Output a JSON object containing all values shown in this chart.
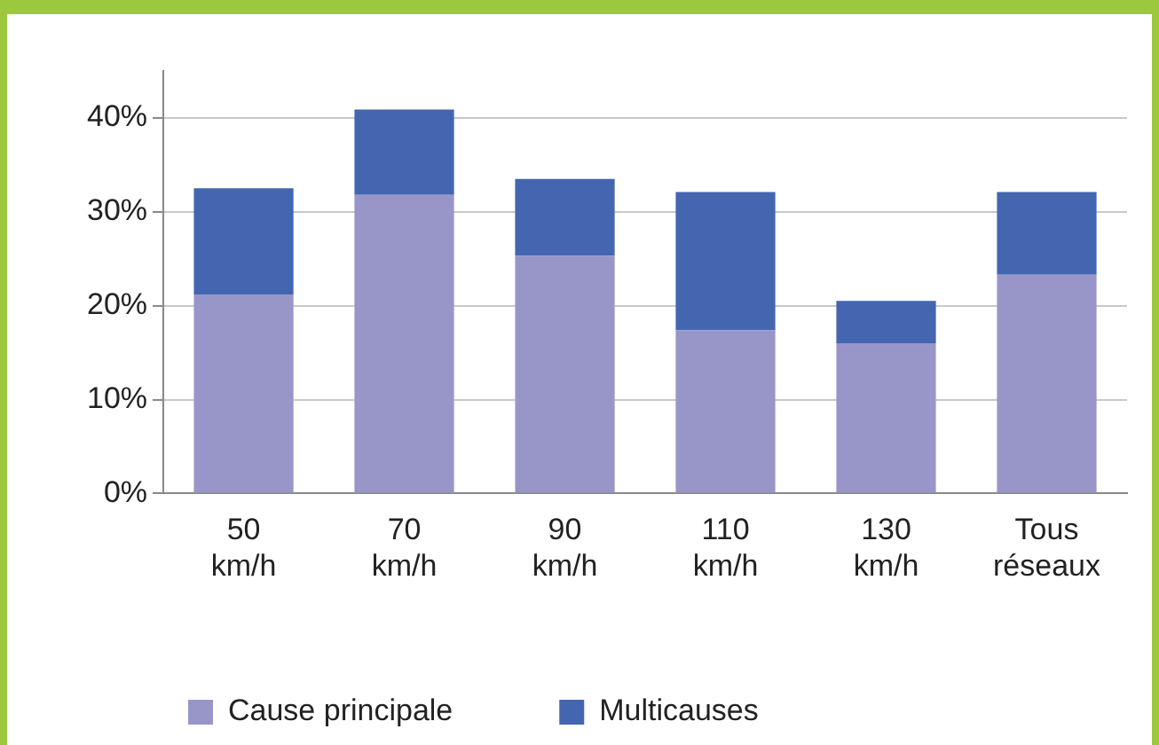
{
  "chart_data": {
    "type": "bar",
    "stacked": true,
    "categories": [
      "50 km/h",
      "70 km/h",
      "90 km/h",
      "110 km/h",
      "130 km/h",
      "Tous réseaux"
    ],
    "series": [
      {
        "name": "Cause principale",
        "color": "#9896c9",
        "values": [
          21.2,
          31.8,
          25.3,
          17.4,
          16.0,
          23.3
        ]
      },
      {
        "name": "Multicauses",
        "color": "#4466b0",
        "values": [
          11.3,
          9.1,
          8.2,
          14.7,
          4.5,
          8.8
        ]
      }
    ],
    "ylim": [
      0,
      45
    ],
    "yticks": [
      {
        "value": 0,
        "label": "0%"
      },
      {
        "value": 10,
        "label": "10%"
      },
      {
        "value": 20,
        "label": "20%"
      },
      {
        "value": 30,
        "label": "30%"
      },
      {
        "value": 40,
        "label": "40%"
      }
    ],
    "grid": "y",
    "legend": "bottom"
  }
}
